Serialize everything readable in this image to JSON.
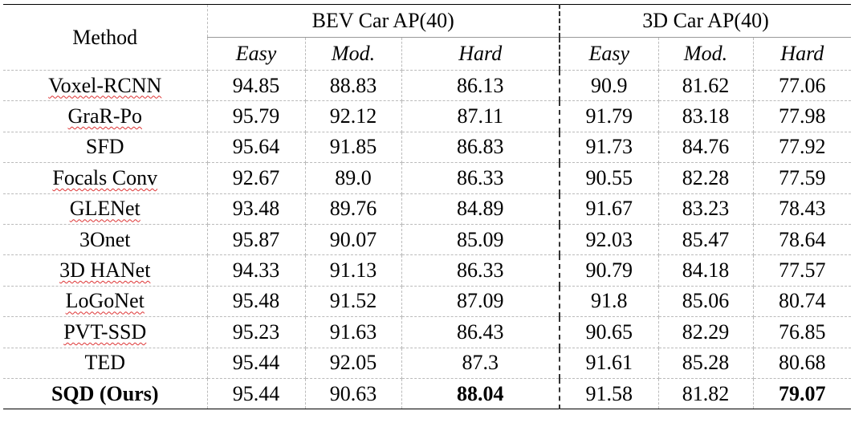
{
  "table": {
    "header": {
      "method": "Method",
      "groups": [
        "BEV Car AP(40)",
        "3D Car AP(40)"
      ],
      "columns": [
        "Easy",
        "Mod.",
        "Hard",
        "Easy",
        "Mod.",
        "Hard"
      ]
    },
    "rows": [
      [
        "Voxel-RCNN",
        "94.85",
        "88.83",
        "86.13",
        "90.9",
        "81.62",
        "77.06"
      ],
      [
        "GraR-Po",
        "95.79",
        "92.12",
        "87.11",
        "91.79",
        "83.18",
        "77.98"
      ],
      [
        "SFD",
        "95.64",
        "91.85",
        "86.83",
        "91.73",
        "84.76",
        "77.92"
      ],
      [
        "Focals Conv",
        "92.67",
        "89.0",
        "86.33",
        "90.55",
        "82.28",
        "77.59"
      ],
      [
        "GLENet",
        "93.48",
        "89.76",
        "84.89",
        "91.67",
        "83.23",
        "78.43"
      ],
      [
        "3Onet",
        "95.87",
        "90.07",
        "85.09",
        "92.03",
        "85.47",
        "78.64"
      ],
      [
        "3D HANet",
        "94.33",
        "91.13",
        "86.33",
        "90.79",
        "84.18",
        "77.57"
      ],
      [
        "LoGoNet",
        "95.48",
        "91.52",
        "87.09",
        "91.8",
        "85.06",
        "80.74"
      ],
      [
        "PVT-SSD",
        "95.23",
        "91.63",
        "86.43",
        "90.65",
        "82.29",
        "76.85"
      ],
      [
        "TED",
        "95.44",
        "92.05",
        "87.3",
        "91.61",
        "85.28",
        "80.68"
      ],
      [
        "SQD (Ours)",
        "95.44",
        "90.63",
        "88.04",
        "91.58",
        "81.82",
        "79.07"
      ]
    ]
  }
}
